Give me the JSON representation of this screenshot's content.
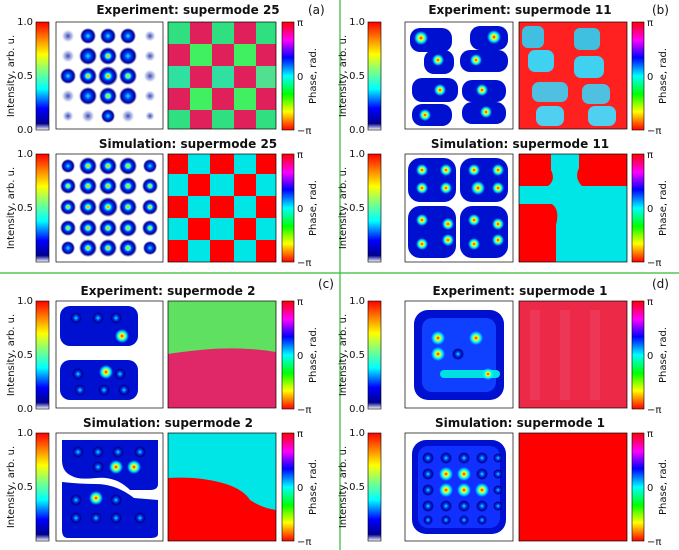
{
  "figure": {
    "panels": [
      {
        "label": "(a)",
        "experiment_title": "Experiment: supermode 25",
        "simulation_title": "Simulation: supermode 25"
      },
      {
        "label": "(b)",
        "experiment_title": "Experiment: supermode 11",
        "simulation_title": "Simulation: supermode 11"
      },
      {
        "label": "(c)",
        "experiment_title": "Experiment: supermode 2",
        "simulation_title": "Simulation: supermode 2"
      },
      {
        "label": "(d)",
        "experiment_title": "Experiment: supermode 1",
        "simulation_title": "Simulation: supermode 1"
      }
    ],
    "intensity_axis": {
      "label": "Intensity, arb. u.",
      "ticks": [
        "1.0",
        "0.5",
        "0.0"
      ],
      "colormap": "jet"
    },
    "phase_axis": {
      "label": "Phase, rad.",
      "ticks": [
        "π",
        "0",
        "−π"
      ],
      "colormap": "hsv"
    },
    "divider_color": "#33bb33"
  }
}
